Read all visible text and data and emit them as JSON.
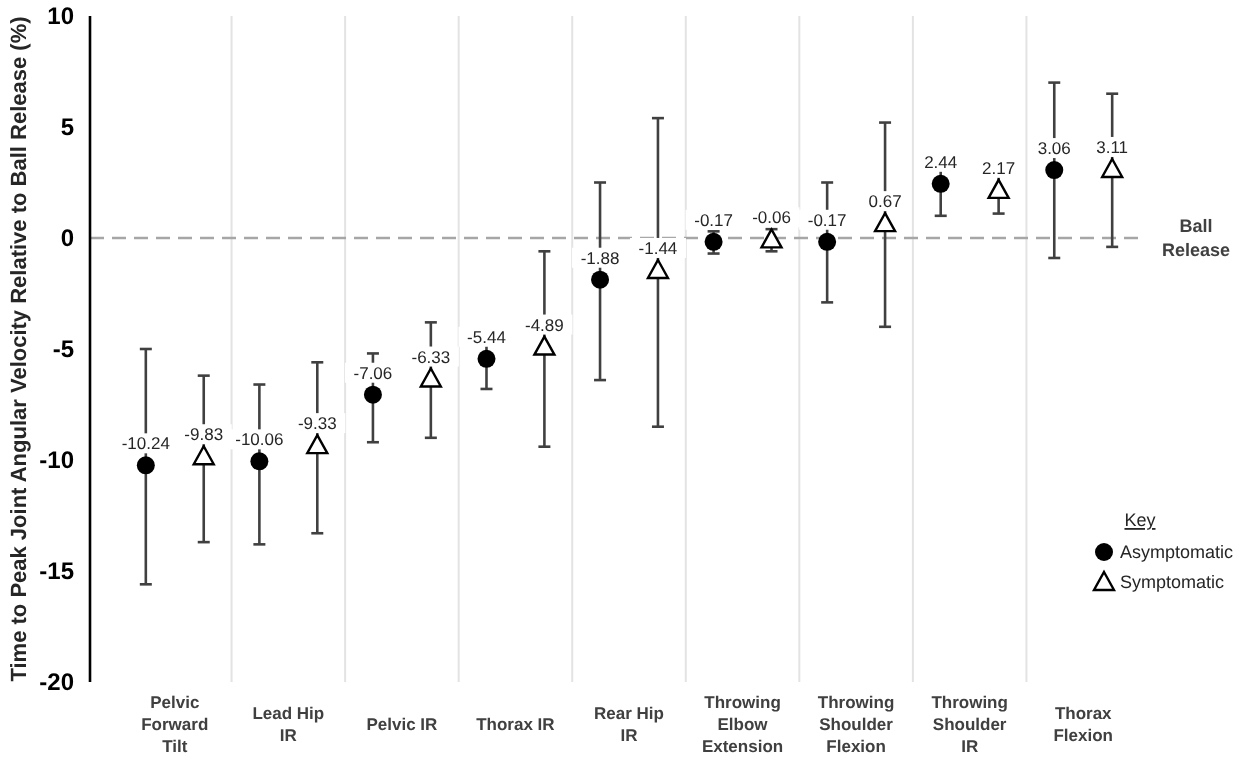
{
  "chart_data": {
    "type": "scatter",
    "ylabel": "Time to Peak Joint Angular Velocity Relative to Ball Release (%)",
    "categories": [
      "Pelvic Forward Tilt",
      "Lead Hip IR",
      "Pelvic IR",
      "Thorax IR",
      "Rear Hip IR",
      "Throwing Elbow Extension",
      "Throwing Shoulder Flexion",
      "Throwing Shoulder IR",
      "Thorax Flexion"
    ],
    "series": [
      {
        "name": "Asymptomatic",
        "color": "#000000",
        "marker": "circle",
        "values": [
          -10.24,
          -10.06,
          -7.06,
          -5.44,
          -1.88,
          -0.17,
          -0.17,
          2.44,
          3.06
        ],
        "errors": [
          [
            -15.6,
            -5.0
          ],
          [
            -13.8,
            -6.6
          ],
          [
            -9.2,
            -5.2
          ],
          [
            -6.8,
            -4.3
          ],
          [
            -6.4,
            2.5
          ],
          [
            -0.7,
            0.3
          ],
          [
            -2.9,
            2.5
          ],
          [
            1.0,
            3.8
          ],
          [
            -0.9,
            7.0
          ]
        ]
      },
      {
        "name": "Symptomatic",
        "color": "#000000",
        "marker": "triangle",
        "values": [
          -9.83,
          -9.33,
          -6.33,
          -4.89,
          -1.44,
          -0.06,
          0.67,
          2.17,
          3.11
        ],
        "errors": [
          [
            -13.7,
            -6.2
          ],
          [
            -13.3,
            -5.6
          ],
          [
            -9.0,
            -3.8
          ],
          [
            -9.4,
            -0.6
          ],
          [
            -8.5,
            5.4
          ],
          [
            -0.6,
            0.4
          ],
          [
            -4.0,
            5.2
          ],
          [
            1.1,
            3.1
          ],
          [
            -0.4,
            6.5
          ]
        ]
      }
    ],
    "ylim": [
      -20,
      10
    ],
    "yticks": [
      -20,
      -15,
      -10,
      -5,
      0,
      5,
      10
    ],
    "ref_lines": [
      {
        "axis": "y",
        "value": 0,
        "label": "Ball Release",
        "color": "#a6a6a6",
        "line_style": "dashed"
      }
    ],
    "data_labels": true,
    "grid": "x",
    "legend": "right",
    "legend_title": "Key"
  }
}
